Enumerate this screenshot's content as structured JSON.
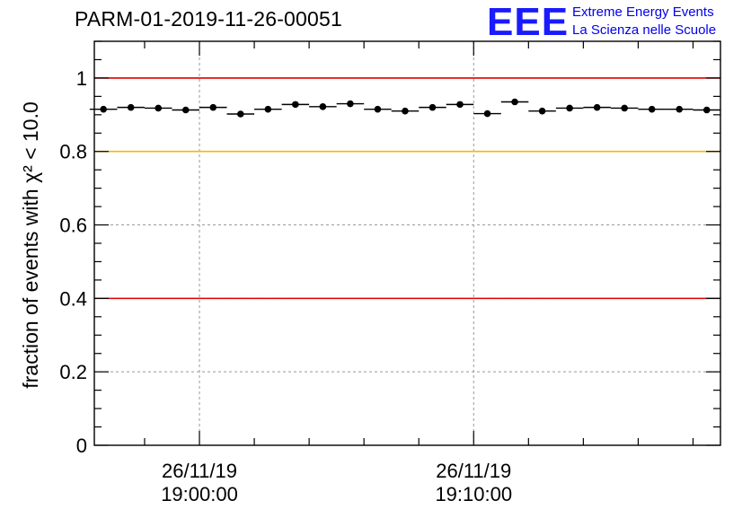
{
  "header": {
    "title": "PARM-01-2019-11-26-00051"
  },
  "logo": {
    "mark": "EEE",
    "line1": "Extreme Energy Events",
    "line2": "La Scienza nelle Scuole",
    "color": "#0000ee"
  },
  "chart_data": {
    "type": "scatter",
    "title": "PARM-01-2019-11-26-00051",
    "ylabel": "fraction of events with χ² < 10.0",
    "xlabel": "",
    "ylim": [
      0,
      1.1
    ],
    "yticks": [
      0,
      0.2,
      0.4,
      0.6,
      0.8,
      1
    ],
    "ytick_labels": [
      "0",
      "0.2",
      "0.4",
      "0.6",
      "0.8",
      "1"
    ],
    "xlim": [
      "2019-11-26 18:56:10",
      "2019-11-26 19:19:00"
    ],
    "xticks": [
      "2019-11-26 19:00:00",
      "2019-11-26 19:10:00"
    ],
    "xtick_labels": [
      [
        "26/11/19",
        "19:00:00"
      ],
      [
        "26/11/19",
        "19:10:00"
      ]
    ],
    "grid": true,
    "reference_lines": [
      {
        "y": 1.0,
        "color": "#e00000"
      },
      {
        "y": 0.8,
        "color": "#f5b800"
      },
      {
        "y": 0.4,
        "color": "#e00000"
      }
    ],
    "bin_width_seconds": 60,
    "series": [
      {
        "x": [
          "2019-11-26 18:56:30",
          "2019-11-26 18:57:30",
          "2019-11-26 18:58:30",
          "2019-11-26 18:59:30",
          "2019-11-26 19:00:30",
          "2019-11-26 19:01:30",
          "2019-11-26 19:02:30",
          "2019-11-26 19:03:30",
          "2019-11-26 19:04:30",
          "2019-11-26 19:05:30",
          "2019-11-26 19:06:30",
          "2019-11-26 19:07:30",
          "2019-11-26 19:08:30",
          "2019-11-26 19:09:30",
          "2019-11-26 19:10:30",
          "2019-11-26 19:11:30",
          "2019-11-26 19:12:30",
          "2019-11-26 19:13:30",
          "2019-11-26 19:14:30",
          "2019-11-26 19:15:30",
          "2019-11-26 19:16:30",
          "2019-11-26 19:17:30",
          "2019-11-26 19:18:30"
        ],
        "y": [
          0.915,
          0.92,
          0.918,
          0.913,
          0.92,
          0.902,
          0.915,
          0.928,
          0.922,
          0.93,
          0.915,
          0.91,
          0.92,
          0.928,
          0.903,
          0.935,
          0.91,
          0.918,
          0.92,
          0.918,
          0.915,
          0.915,
          0.913
        ]
      }
    ]
  }
}
